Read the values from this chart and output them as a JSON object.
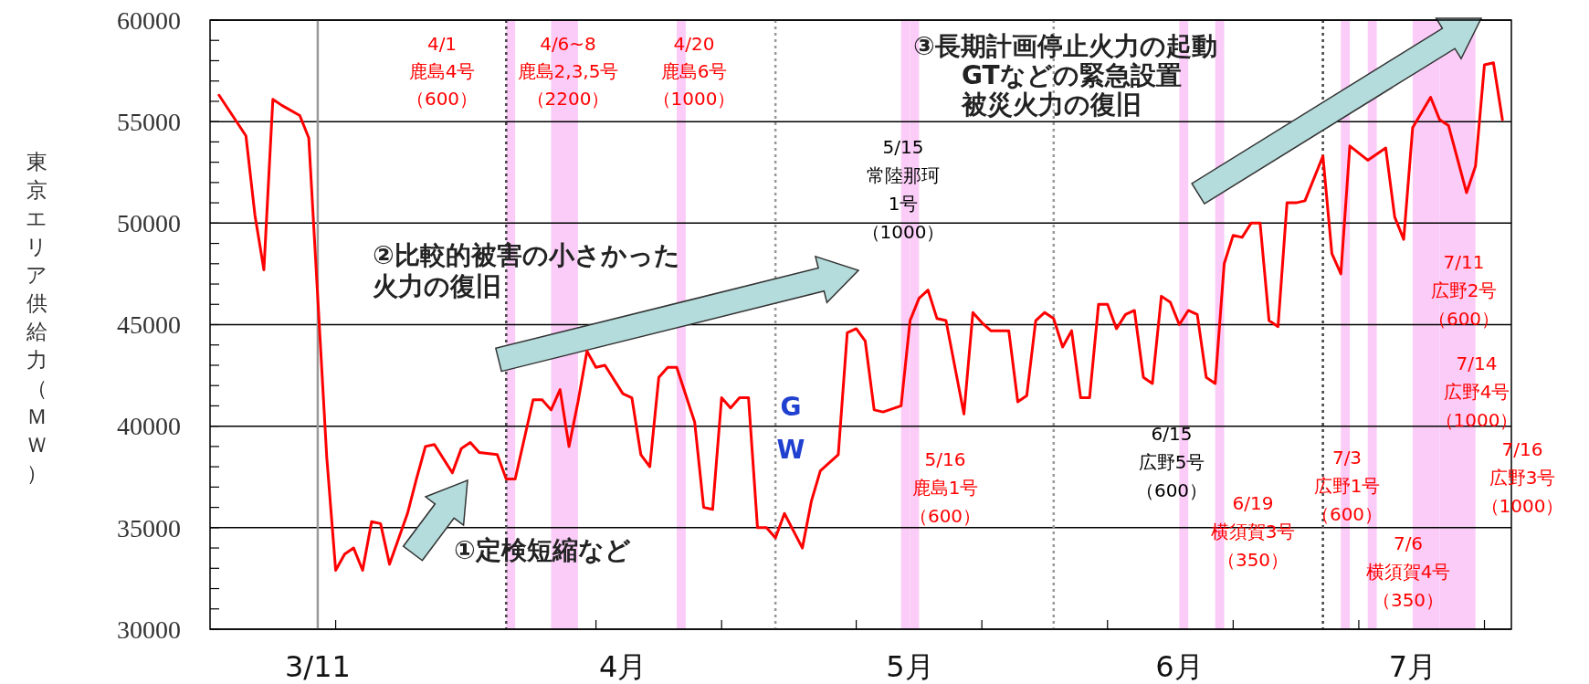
{
  "chart_data": {
    "type": "line",
    "ylabel": "東京エリア供給力（ＭＷ）",
    "x": [
      "--02-28",
      "--03-03",
      "--03-04",
      "--03-05",
      "--03-06",
      "--03-07",
      "--03-09",
      "--03-10",
      "--03-12",
      "--03-13",
      "--03-14",
      "--03-15",
      "--03-16",
      "--03-17",
      "--03-18",
      "--03-19",
      "--03-21",
      "--03-22",
      "--03-23",
      "--03-24",
      "--03-26",
      "--03-27",
      "--03-28",
      "--03-29",
      "--03-31",
      "--04-01",
      "--04-02",
      "--04-04",
      "--04-05",
      "--04-06",
      "--04-07",
      "--04-08",
      "--04-09",
      "--04-10",
      "--04-11",
      "--04-12",
      "--04-14",
      "--04-15",
      "--04-16",
      "--04-17",
      "--04-18",
      "--04-19",
      "--04-20",
      "--04-22",
      "--04-23",
      "--04-24",
      "--04-25",
      "--04-26",
      "--04-27",
      "--04-28",
      "--04-29",
      "--04-30",
      "--05-01",
      "--05-02",
      "--05-04",
      "--05-05",
      "--05-06",
      "--05-08",
      "--05-09",
      "--05-10",
      "--05-11",
      "--05-12",
      "--05-13",
      "--05-15",
      "--05-16",
      "--05-17",
      "--05-18",
      "--05-19",
      "--05-20",
      "--05-22",
      "--05-23",
      "--05-24",
      "--05-25",
      "--05-27",
      "--05-28",
      "--05-29",
      "--05-30",
      "--05-31",
      "--06-01",
      "--06-02",
      "--06-03",
      "--06-04",
      "--06-05",
      "--06-06",
      "--06-07",
      "--06-08",
      "--06-09",
      "--06-10",
      "--06-11",
      "--06-12",
      "--06-13",
      "--06-14",
      "--06-15",
      "--06-16",
      "--06-17",
      "--06-18",
      "--06-19",
      "--06-20",
      "--06-21",
      "--06-22",
      "--06-23",
      "--06-24",
      "--06-25",
      "--06-26",
      "--06-27",
      "--06-28",
      "--06-29",
      "--07-01",
      "--07-02",
      "--07-03",
      "--07-04",
      "--07-06",
      "--07-08",
      "--07-09",
      "--07-10",
      "--07-11",
      "--07-13",
      "--07-14",
      "--07-15",
      "--07-17",
      "--07-18",
      "--07-19",
      "--07-20",
      "--07-21"
    ],
    "series": [
      {
        "color": "#ff0000",
        "values": [
          56300,
          54300,
          50400,
          47700,
          56100,
          55800,
          55300,
          54200,
          38500,
          32900,
          33700,
          34000,
          32900,
          35300,
          35200,
          33200,
          35700,
          37400,
          39000,
          39100,
          37700,
          38900,
          39200,
          38700,
          38600,
          37400,
          37400,
          41300,
          41300,
          40800,
          41800,
          39000,
          41200,
          43700,
          42900,
          43000,
          41600,
          41400,
          38600,
          38000,
          42400,
          42900,
          42900,
          40200,
          36000,
          35900,
          41400,
          40900,
          41400,
          41400,
          35000,
          35000,
          34500,
          35700,
          34000,
          36300,
          37800,
          38600,
          44600,
          44800,
          44200,
          40800,
          40700,
          41000,
          45200,
          46300,
          46700,
          45300,
          45200,
          40600,
          45600,
          45100,
          44700,
          44700,
          41200,
          41500,
          45200,
          45600,
          45300,
          43900,
          44700,
          41400,
          41400,
          46000,
          46000,
          44800,
          45500,
          45700,
          42400,
          42100,
          46400,
          46100,
          45000,
          45700,
          45500,
          42400,
          42100,
          48000,
          49400,
          49300,
          50000,
          50000,
          45200,
          44900,
          51000,
          51000,
          51100,
          53300,
          48500,
          47500,
          53800,
          53100,
          53700,
          50300,
          49200,
          54700,
          56200,
          55100,
          54800,
          51500,
          52800,
          57800,
          57900,
          55100
        ]
      }
    ],
    "xlim": [
      "--02-27",
      "--07-22"
    ],
    "xticks": [
      {
        "value": "--03-11",
        "label": "3/11"
      },
      {
        "value": "--04-14",
        "label": "4月"
      },
      {
        "value": "--05-16",
        "label": "5月"
      },
      {
        "value": "--06-15",
        "label": "6月"
      },
      {
        "value": "--07-11",
        "label": "7月"
      },
      {
        "value": "--03-13",
        "label": null
      },
      {
        "value": "--04-11",
        "label": null
      },
      {
        "value": "--04-25",
        "label": null
      },
      {
        "value": "--05-10",
        "label": null
      },
      {
        "value": "--05-24",
        "label": null
      },
      {
        "value": "--06-07",
        "label": null
      },
      {
        "value": "--06-21",
        "label": null
      },
      {
        "value": "--07-05",
        "label": null
      },
      {
        "value": "--07-19",
        "label": null
      }
    ],
    "ylim": [
      30000,
      60000
    ],
    "yticks": [
      30000,
      {
        "value": 31000,
        "label": null
      },
      {
        "value": 32000,
        "label": null
      },
      {
        "value": 33000,
        "label": null
      },
      {
        "value": 34000,
        "label": null
      },
      35000,
      {
        "value": 36000,
        "label": null
      },
      {
        "value": 37000,
        "label": null
      },
      {
        "value": 38000,
        "label": null
      },
      {
        "value": 39000,
        "label": null
      },
      40000,
      {
        "value": 41000,
        "label": null
      },
      {
        "value": 42000,
        "label": null
      },
      {
        "value": 43000,
        "label": null
      },
      {
        "value": 44000,
        "label": null
      },
      45000,
      {
        "value": 46000,
        "label": null
      },
      {
        "value": 47000,
        "label": null
      },
      {
        "value": 48000,
        "label": null
      },
      {
        "value": 49000,
        "label": null
      },
      50000,
      {
        "value": 51000,
        "label": null
      },
      {
        "value": 52000,
        "label": null
      },
      {
        "value": 53000,
        "label": null
      },
      {
        "value": 54000,
        "label": null
      },
      55000,
      {
        "value": 56000,
        "label": null
      },
      {
        "value": 57000,
        "label": null
      },
      {
        "value": 58000,
        "label": null
      },
      {
        "value": 59000,
        "label": null
      },
      60000
    ],
    "grid": "y",
    "ref_lines": [
      {
        "axis": "x",
        "value": "--03-11",
        "color": "#999999",
        "line_style": "solid"
      },
      {
        "axis": "x",
        "value": "--04-01",
        "color": "#444444",
        "line_style": "dotted"
      },
      {
        "axis": "x",
        "value": "--05-01",
        "color": "#999999",
        "line_style": "dotted"
      },
      {
        "axis": "x",
        "value": "--06-01",
        "color": "#999999",
        "line_style": "dotted"
      },
      {
        "axis": "x",
        "value": "--07-01",
        "color": "#444444",
        "line_style": "dotted"
      }
    ],
    "bands": [
      {
        "axis": "x",
        "from": "--04-01",
        "to": "--04-02",
        "label": "4/1\n鹿島4号（600）",
        "color": "#f9c3f6"
      },
      {
        "axis": "x",
        "from": "--04-06",
        "to": "--04-09",
        "label": "4/6~8\n鹿島2,3,5号（2200）",
        "color": "#f9c3f6"
      },
      {
        "axis": "x",
        "from": "--04-20",
        "to": "--04-21",
        "label": "4/20\n鹿島6号（1000）",
        "color": "#f9c3f6"
      },
      {
        "axis": "x",
        "from": "--05-15",
        "to": "--05-16",
        "label": "5/15\n常陸那珂1号（1000）",
        "color": "#f9c3f6"
      },
      {
        "axis": "x",
        "from": "--05-16",
        "to": "--05-17",
        "label": "5/16\n鹿島1号（600）",
        "color": "#f9c3f6"
      },
      {
        "axis": "x",
        "from": "--06-15",
        "to": "--06-16",
        "label": "6/15\n広野5号（600）",
        "color": "#f9c3f6"
      },
      {
        "axis": "x",
        "from": "--06-19",
        "to": "--06-20",
        "label": "6/19\n横須賀3号（350）",
        "color": "#f9c3f6"
      },
      {
        "axis": "x",
        "from": "--07-03",
        "to": "--07-04",
        "label": "7/3\n広野1号（600）",
        "color": "#f9c3f6"
      },
      {
        "axis": "x",
        "from": "--07-06",
        "to": "--07-07",
        "label": "7/6\n横須賀4号（350）",
        "color": "#f9c3f6"
      },
      {
        "axis": "x",
        "from": "--07-11",
        "to": "--07-14",
        "label": "7/11\n広野2号（600）",
        "color": "#f9c3f6"
      },
      {
        "axis": "x",
        "from": "--07-14",
        "to": "--07-16",
        "label": "7/14\n広野4号（1000）",
        "color": "#f9c3f6"
      },
      {
        "axis": "x",
        "from": "--07-16",
        "to": "--07-18",
        "label": "7/16\n広野3号（1000）",
        "color": "#f9c3f6"
      }
    ],
    "annotations": [
      "①定検短縮など",
      "②比較的被害の小さかった火力の復旧",
      "③長期計画停止火力の起動GTなどの緊急設置被災火力の復旧",
      "GW"
    ]
  }
}
